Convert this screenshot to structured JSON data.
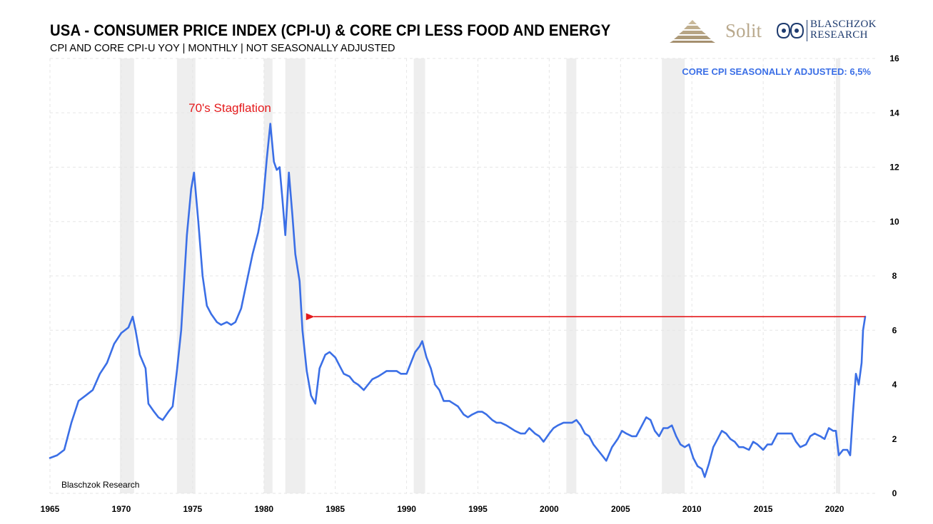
{
  "header": {
    "title": "USA - CONSUMER PRICE INDEX (CPI-U) & CORE CPI LESS FOOD AND ENERGY",
    "subtitle": "CPI AND CORE CPI-U YOY | MONTHLY | NOT SEASONALLY ADJUSTED"
  },
  "logos": {
    "solit": "Solit",
    "blaschzok_line1": "BLASCHZOK",
    "blaschzok_line2": "RESEARCH"
  },
  "colors": {
    "series": "#3b6fe6",
    "annotation": "#e41a1c",
    "recession": "#eeeeee"
  },
  "chart_data": {
    "type": "line",
    "series": [
      {
        "name": "CORE CPI SEASONALLY ADJUSTED: 6,5%",
        "points": [
          [
            1965.0,
            1.3
          ],
          [
            1965.5,
            1.4
          ],
          [
            1966.0,
            1.6
          ],
          [
            1966.5,
            2.6
          ],
          [
            1967.0,
            3.4
          ],
          [
            1967.5,
            3.6
          ],
          [
            1968.0,
            3.8
          ],
          [
            1968.5,
            4.4
          ],
          [
            1969.0,
            4.8
          ],
          [
            1969.5,
            5.5
          ],
          [
            1970.0,
            5.9
          ],
          [
            1970.5,
            6.1
          ],
          [
            1970.8,
            6.5
          ],
          [
            1971.0,
            6.0
          ],
          [
            1971.3,
            5.1
          ],
          [
            1971.7,
            4.6
          ],
          [
            1971.9,
            3.3
          ],
          [
            1972.3,
            3.0
          ],
          [
            1972.6,
            2.8
          ],
          [
            1972.9,
            2.7
          ],
          [
            1973.3,
            3.0
          ],
          [
            1973.6,
            3.2
          ],
          [
            1973.9,
            4.5
          ],
          [
            1974.2,
            6.0
          ],
          [
            1974.6,
            9.5
          ],
          [
            1974.9,
            11.2
          ],
          [
            1975.1,
            11.8
          ],
          [
            1975.4,
            10.0
          ],
          [
            1975.7,
            8.0
          ],
          [
            1976.0,
            6.9
          ],
          [
            1976.3,
            6.6
          ],
          [
            1976.7,
            6.3
          ],
          [
            1977.0,
            6.2
          ],
          [
            1977.4,
            6.3
          ],
          [
            1977.7,
            6.2
          ],
          [
            1978.0,
            6.3
          ],
          [
            1978.4,
            6.8
          ],
          [
            1978.8,
            7.8
          ],
          [
            1979.2,
            8.8
          ],
          [
            1979.6,
            9.6
          ],
          [
            1979.9,
            10.5
          ],
          [
            1980.2,
            12.3
          ],
          [
            1980.45,
            13.6
          ],
          [
            1980.7,
            12.2
          ],
          [
            1980.9,
            11.9
          ],
          [
            1981.1,
            12.0
          ],
          [
            1981.3,
            10.8
          ],
          [
            1981.5,
            9.5
          ],
          [
            1981.75,
            11.8
          ],
          [
            1982.0,
            10.2
          ],
          [
            1982.2,
            8.8
          ],
          [
            1982.5,
            7.8
          ],
          [
            1982.7,
            6.0
          ],
          [
            1983.0,
            4.5
          ],
          [
            1983.3,
            3.6
          ],
          [
            1983.6,
            3.3
          ],
          [
            1983.9,
            4.6
          ],
          [
            1984.3,
            5.1
          ],
          [
            1984.6,
            5.2
          ],
          [
            1985.0,
            5.0
          ],
          [
            1985.3,
            4.7
          ],
          [
            1985.6,
            4.4
          ],
          [
            1986.0,
            4.3
          ],
          [
            1986.3,
            4.1
          ],
          [
            1986.6,
            4.0
          ],
          [
            1987.0,
            3.8
          ],
          [
            1987.3,
            4.0
          ],
          [
            1987.6,
            4.2
          ],
          [
            1988.0,
            4.3
          ],
          [
            1988.3,
            4.4
          ],
          [
            1988.6,
            4.5
          ],
          [
            1989.0,
            4.5
          ],
          [
            1989.3,
            4.5
          ],
          [
            1989.6,
            4.4
          ],
          [
            1990.0,
            4.4
          ],
          [
            1990.3,
            4.8
          ],
          [
            1990.6,
            5.2
          ],
          [
            1990.9,
            5.4
          ],
          [
            1991.1,
            5.6
          ],
          [
            1991.4,
            5.0
          ],
          [
            1991.7,
            4.6
          ],
          [
            1992.0,
            4.0
          ],
          [
            1992.3,
            3.8
          ],
          [
            1992.6,
            3.4
          ],
          [
            1993.0,
            3.4
          ],
          [
            1993.3,
            3.3
          ],
          [
            1993.6,
            3.2
          ],
          [
            1994.0,
            2.9
          ],
          [
            1994.3,
            2.8
          ],
          [
            1994.6,
            2.9
          ],
          [
            1995.0,
            3.0
          ],
          [
            1995.3,
            3.0
          ],
          [
            1995.6,
            2.9
          ],
          [
            1996.0,
            2.7
          ],
          [
            1996.3,
            2.6
          ],
          [
            1996.6,
            2.6
          ],
          [
            1997.0,
            2.5
          ],
          [
            1997.3,
            2.4
          ],
          [
            1997.6,
            2.3
          ],
          [
            1998.0,
            2.2
          ],
          [
            1998.3,
            2.2
          ],
          [
            1998.6,
            2.4
          ],
          [
            1999.0,
            2.2
          ],
          [
            1999.3,
            2.1
          ],
          [
            1999.6,
            1.9
          ],
          [
            2000.0,
            2.2
          ],
          [
            2000.3,
            2.4
          ],
          [
            2000.6,
            2.5
          ],
          [
            2001.0,
            2.6
          ],
          [
            2001.3,
            2.6
          ],
          [
            2001.6,
            2.6
          ],
          [
            2001.9,
            2.7
          ],
          [
            2002.2,
            2.5
          ],
          [
            2002.5,
            2.2
          ],
          [
            2002.8,
            2.1
          ],
          [
            2003.1,
            1.8
          ],
          [
            2003.4,
            1.6
          ],
          [
            2003.7,
            1.4
          ],
          [
            2004.0,
            1.2
          ],
          [
            2004.4,
            1.7
          ],
          [
            2004.8,
            2.0
          ],
          [
            2005.1,
            2.3
          ],
          [
            2005.4,
            2.2
          ],
          [
            2005.8,
            2.1
          ],
          [
            2006.1,
            2.1
          ],
          [
            2006.4,
            2.4
          ],
          [
            2006.8,
            2.8
          ],
          [
            2007.1,
            2.7
          ],
          [
            2007.4,
            2.3
          ],
          [
            2007.7,
            2.1
          ],
          [
            2008.0,
            2.4
          ],
          [
            2008.3,
            2.4
          ],
          [
            2008.6,
            2.5
          ],
          [
            2008.9,
            2.1
          ],
          [
            2009.2,
            1.8
          ],
          [
            2009.5,
            1.7
          ],
          [
            2009.8,
            1.8
          ],
          [
            2010.1,
            1.3
          ],
          [
            2010.4,
            1.0
          ],
          [
            2010.7,
            0.9
          ],
          [
            2010.9,
            0.6
          ],
          [
            2011.2,
            1.1
          ],
          [
            2011.5,
            1.7
          ],
          [
            2011.8,
            2.0
          ],
          [
            2012.1,
            2.3
          ],
          [
            2012.4,
            2.2
          ],
          [
            2012.7,
            2.0
          ],
          [
            2013.0,
            1.9
          ],
          [
            2013.3,
            1.7
          ],
          [
            2013.6,
            1.7
          ],
          [
            2014.0,
            1.6
          ],
          [
            2014.3,
            1.9
          ],
          [
            2014.6,
            1.8
          ],
          [
            2015.0,
            1.6
          ],
          [
            2015.3,
            1.8
          ],
          [
            2015.6,
            1.8
          ],
          [
            2016.0,
            2.2
          ],
          [
            2016.3,
            2.2
          ],
          [
            2016.6,
            2.2
          ],
          [
            2017.0,
            2.2
          ],
          [
            2017.3,
            1.9
          ],
          [
            2017.6,
            1.7
          ],
          [
            2018.0,
            1.8
          ],
          [
            2018.3,
            2.1
          ],
          [
            2018.6,
            2.2
          ],
          [
            2019.0,
            2.1
          ],
          [
            2019.3,
            2.0
          ],
          [
            2019.6,
            2.4
          ],
          [
            2019.9,
            2.3
          ],
          [
            2020.1,
            2.3
          ],
          [
            2020.3,
            1.4
          ],
          [
            2020.6,
            1.6
          ],
          [
            2020.9,
            1.6
          ],
          [
            2021.1,
            1.4
          ],
          [
            2021.3,
            3.0
          ],
          [
            2021.5,
            4.4
          ],
          [
            2021.7,
            4.0
          ],
          [
            2021.9,
            4.8
          ],
          [
            2022.0,
            6.0
          ],
          [
            2022.15,
            6.5
          ]
        ]
      }
    ],
    "recessions": [
      [
        1969.9,
        1970.9
      ],
      [
        1973.9,
        1975.2
      ],
      [
        1980.0,
        1980.6
      ],
      [
        1981.5,
        1982.9
      ],
      [
        1990.5,
        1991.3
      ],
      [
        2001.2,
        2001.9
      ],
      [
        2007.9,
        2009.5
      ],
      [
        2020.1,
        2020.4
      ]
    ],
    "xlim": [
      1965,
      2023
    ],
    "ylim": [
      0,
      16
    ],
    "x_ticks": [
      "1965",
      "1970",
      "1975",
      "1980",
      "1985",
      "1990",
      "1995",
      "2000",
      "2005",
      "2010",
      "2015",
      "2020"
    ],
    "y_ticks": [
      "0",
      "2",
      "4",
      "6",
      "8",
      "10",
      "12",
      "14",
      "16"
    ],
    "grid": true,
    "annotations": {
      "stagflation": "70's Stagflation",
      "arrow_value": 6.5,
      "arrow_from_year": 2022.15,
      "arrow_to_year": 1982.9,
      "watermark": "Blaschzok Research"
    }
  }
}
